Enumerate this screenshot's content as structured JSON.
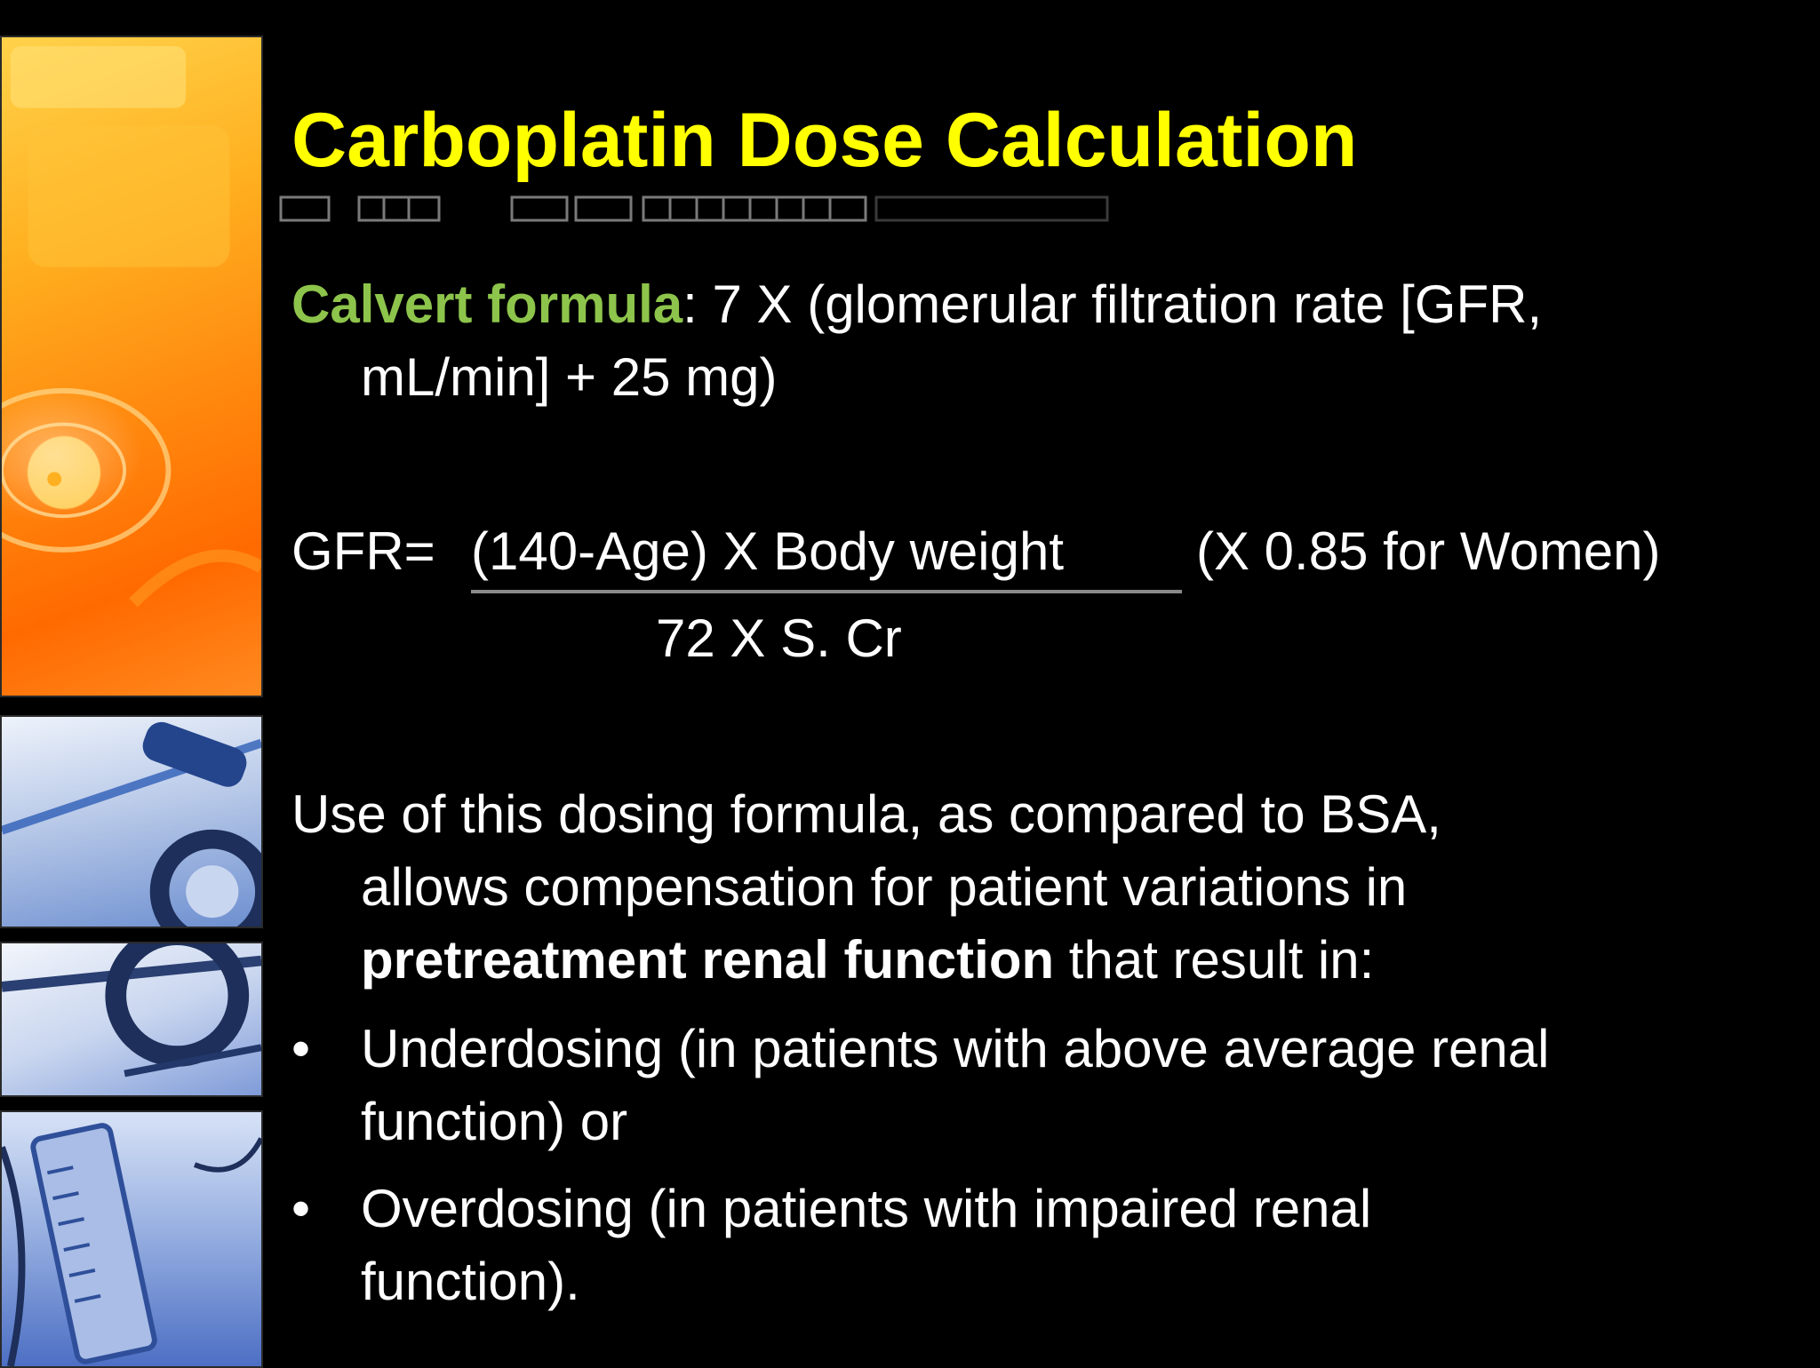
{
  "slide": {
    "title": "Carboplatin Dose Calculation",
    "calvert": {
      "label": "Calvert formula",
      "text_line1": ": 7 X (glomerular filtration rate [GFR,",
      "text_line2": "mL/min] + 25 mg)"
    },
    "gfr": {
      "prefix": "GFR=",
      "numerator": "(140-Age) X Body weight",
      "women_note": "(X 0.85 for Women)",
      "denominator": "72 X S. Cr"
    },
    "usage": {
      "line1": "Use of this dosing formula, as compared to BSA,",
      "line2": "allows compensation for patient variations in",
      "line3_bold": "pretreatment renal function",
      "line3_rest": " that result in:"
    },
    "bullets": [
      {
        "glyph": "•",
        "line1": "Underdosing (in patients with above average renal",
        "line2": "function) or"
      },
      {
        "glyph": "•",
        "line1": "Overdosing (in patients with impaired renal",
        "line2": "function)."
      }
    ],
    "colors": {
      "background": "#000000",
      "title": "#ffff00",
      "label_green": "#8dc44b",
      "text": "#ffffff",
      "fraction_bar": "#8a8a8a"
    },
    "decorations": {
      "left_column": [
        "orange-medical-photo",
        "blue-stethoscope-photo",
        "blue-instrument-photo",
        "blue-syringe-photo"
      ]
    }
  }
}
